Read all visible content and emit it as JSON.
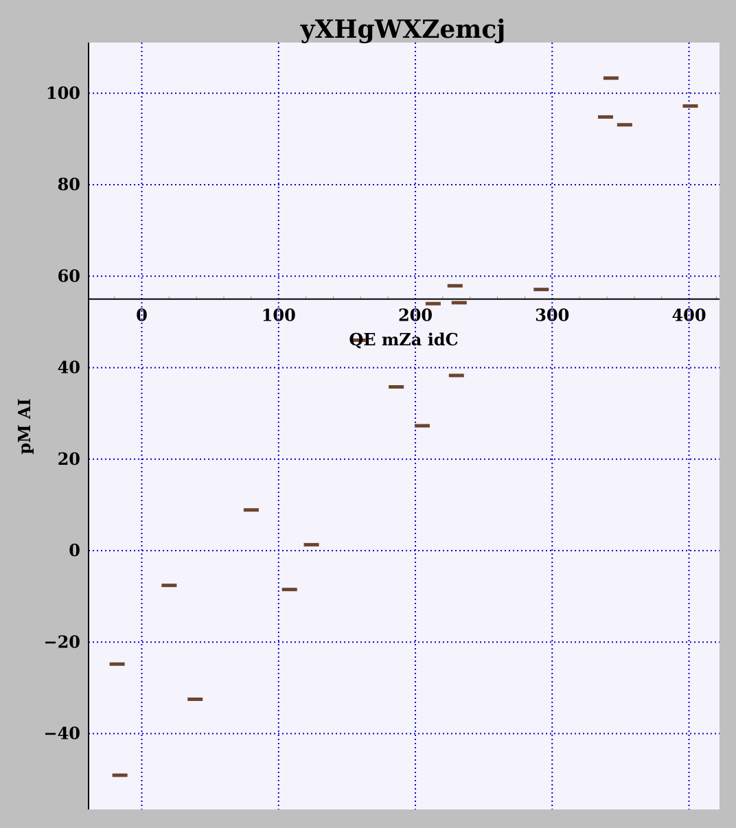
{
  "chart_data": {
    "type": "scatter",
    "title": "yXHgWXZemcj",
    "xlabel": "QE mZa idC",
    "ylabel": "pM AI",
    "xlim": [
      -39,
      422
    ],
    "ylim": [
      -57,
      111
    ],
    "xticks": [
      0,
      100,
      200,
      300,
      400
    ],
    "yticks": [
      -40,
      -20,
      0,
      20,
      40,
      60,
      80,
      100
    ],
    "x_axis_crosses_at_y": 55,
    "grid": true,
    "marker": "hline",
    "colors": {
      "background": "#bfbfbf",
      "plot_area": "#f5f3fc",
      "grid": "#0000cc",
      "marker": "#6b4530",
      "axis": "#000000"
    },
    "points": [
      {
        "x": -18,
        "y": -24.8
      },
      {
        "x": -16,
        "y": -49.1
      },
      {
        "x": 20,
        "y": -7.6
      },
      {
        "x": 39,
        "y": -32.5
      },
      {
        "x": 80,
        "y": 8.9
      },
      {
        "x": 108,
        "y": -8.5
      },
      {
        "x": 124,
        "y": 1.3
      },
      {
        "x": 158,
        "y": 46.0
      },
      {
        "x": 186,
        "y": 35.8
      },
      {
        "x": 205,
        "y": 27.3
      },
      {
        "x": 213,
        "y": 54.0
      },
      {
        "x": 229,
        "y": 57.9
      },
      {
        "x": 230,
        "y": 38.3
      },
      {
        "x": 232,
        "y": 54.2
      },
      {
        "x": 292,
        "y": 57.1
      },
      {
        "x": 339,
        "y": 94.8
      },
      {
        "x": 343,
        "y": 103.3
      },
      {
        "x": 353,
        "y": 93.1
      },
      {
        "x": 401,
        "y": 97.2
      }
    ]
  }
}
